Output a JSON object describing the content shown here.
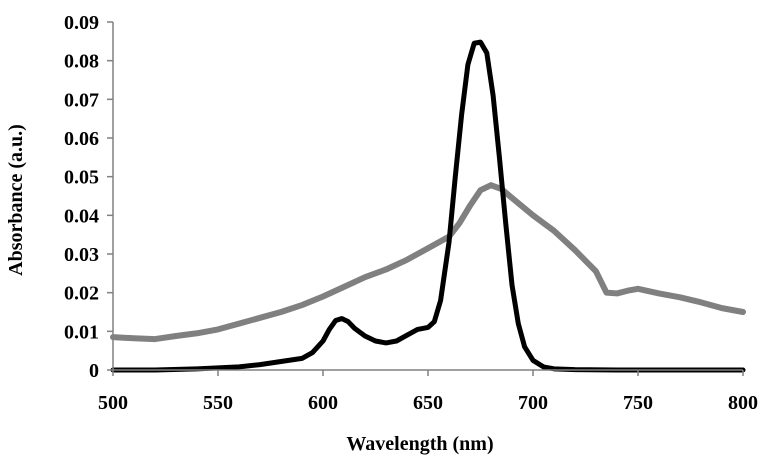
{
  "chart_data": {
    "type": "line",
    "xlabel": "Wavelength  (nm)",
    "ylabel": "Absorbance  (a.u.)",
    "xlim": [
      500,
      800
    ],
    "ylim": [
      0,
      0.09
    ],
    "xticks": [
      "500",
      "550",
      "600",
      "650",
      "700",
      "750",
      "800"
    ],
    "yticks": [
      "0",
      "0.01",
      "0.02",
      "0.03",
      "0.04",
      "0.05",
      "0.06",
      "0.07",
      "0.08",
      "0.09"
    ],
    "grid": false,
    "series": [
      {
        "color": "#000000",
        "x": [
          500,
          520,
          540,
          560,
          570,
          580,
          590,
          595,
          600,
          603,
          606,
          609,
          612,
          615,
          620,
          625,
          630,
          635,
          640,
          645,
          650,
          653,
          656,
          660,
          663,
          666,
          669,
          672,
          675,
          678,
          681,
          684,
          687,
          690,
          693,
          696,
          700,
          705,
          710,
          720,
          740,
          760,
          780,
          800
        ],
        "y": [
          0.0,
          0.0,
          0.0003,
          0.0008,
          0.0014,
          0.0022,
          0.003,
          0.0045,
          0.0075,
          0.0105,
          0.0128,
          0.0133,
          0.0125,
          0.0108,
          0.0088,
          0.0075,
          0.007,
          0.0075,
          0.009,
          0.0105,
          0.011,
          0.0125,
          0.018,
          0.033,
          0.05,
          0.066,
          0.079,
          0.0845,
          0.0848,
          0.082,
          0.071,
          0.055,
          0.038,
          0.022,
          0.012,
          0.006,
          0.0025,
          0.0008,
          0.0003,
          0.0001,
          0.0,
          0.0,
          0.0,
          0.0
        ]
      },
      {
        "color": "#808080",
        "x": [
          500,
          510,
          520,
          530,
          540,
          550,
          560,
          570,
          580,
          590,
          600,
          610,
          620,
          630,
          640,
          650,
          660,
          665,
          670,
          675,
          680,
          685,
          690,
          700,
          710,
          720,
          730,
          735,
          740,
          745,
          750,
          760,
          770,
          780,
          790,
          800
        ],
        "y": [
          0.0085,
          0.0082,
          0.008,
          0.0088,
          0.0095,
          0.0105,
          0.012,
          0.0135,
          0.015,
          0.0168,
          0.019,
          0.0215,
          0.024,
          0.026,
          0.0285,
          0.0315,
          0.0345,
          0.038,
          0.0425,
          0.0465,
          0.0478,
          0.0468,
          0.0445,
          0.04,
          0.036,
          0.031,
          0.0255,
          0.02,
          0.0198,
          0.0205,
          0.021,
          0.0198,
          0.0188,
          0.0175,
          0.016,
          0.015
        ]
      }
    ]
  }
}
